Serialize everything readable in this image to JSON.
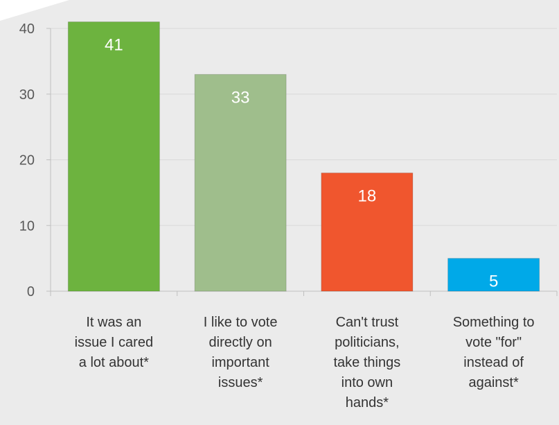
{
  "chart_data": {
    "type": "bar",
    "categories": [
      [
        "It was an",
        "issue I cared",
        "a lot about*"
      ],
      [
        "I like to vote",
        "directly on",
        "important",
        "issues*"
      ],
      [
        "Can't trust",
        "politicians,",
        "take things",
        "into own",
        "hands*"
      ],
      [
        "Something to",
        "vote \"for\"",
        "instead of",
        "against*"
      ]
    ],
    "values": [
      41,
      33,
      18,
      5
    ],
    "data_labels": [
      "41",
      "33",
      "18",
      "5"
    ],
    "colors": [
      "#6db33f",
      "#9fbe8c",
      "#f0562e",
      "#00a9e8"
    ],
    "ylim": [
      0,
      40
    ],
    "yticks": [
      0,
      10,
      20,
      30,
      40
    ],
    "ytick_labels": [
      "0",
      "10",
      "20",
      "30",
      "40"
    ],
    "grid": true,
    "title": "",
    "xlabel": "",
    "ylabel": ""
  }
}
